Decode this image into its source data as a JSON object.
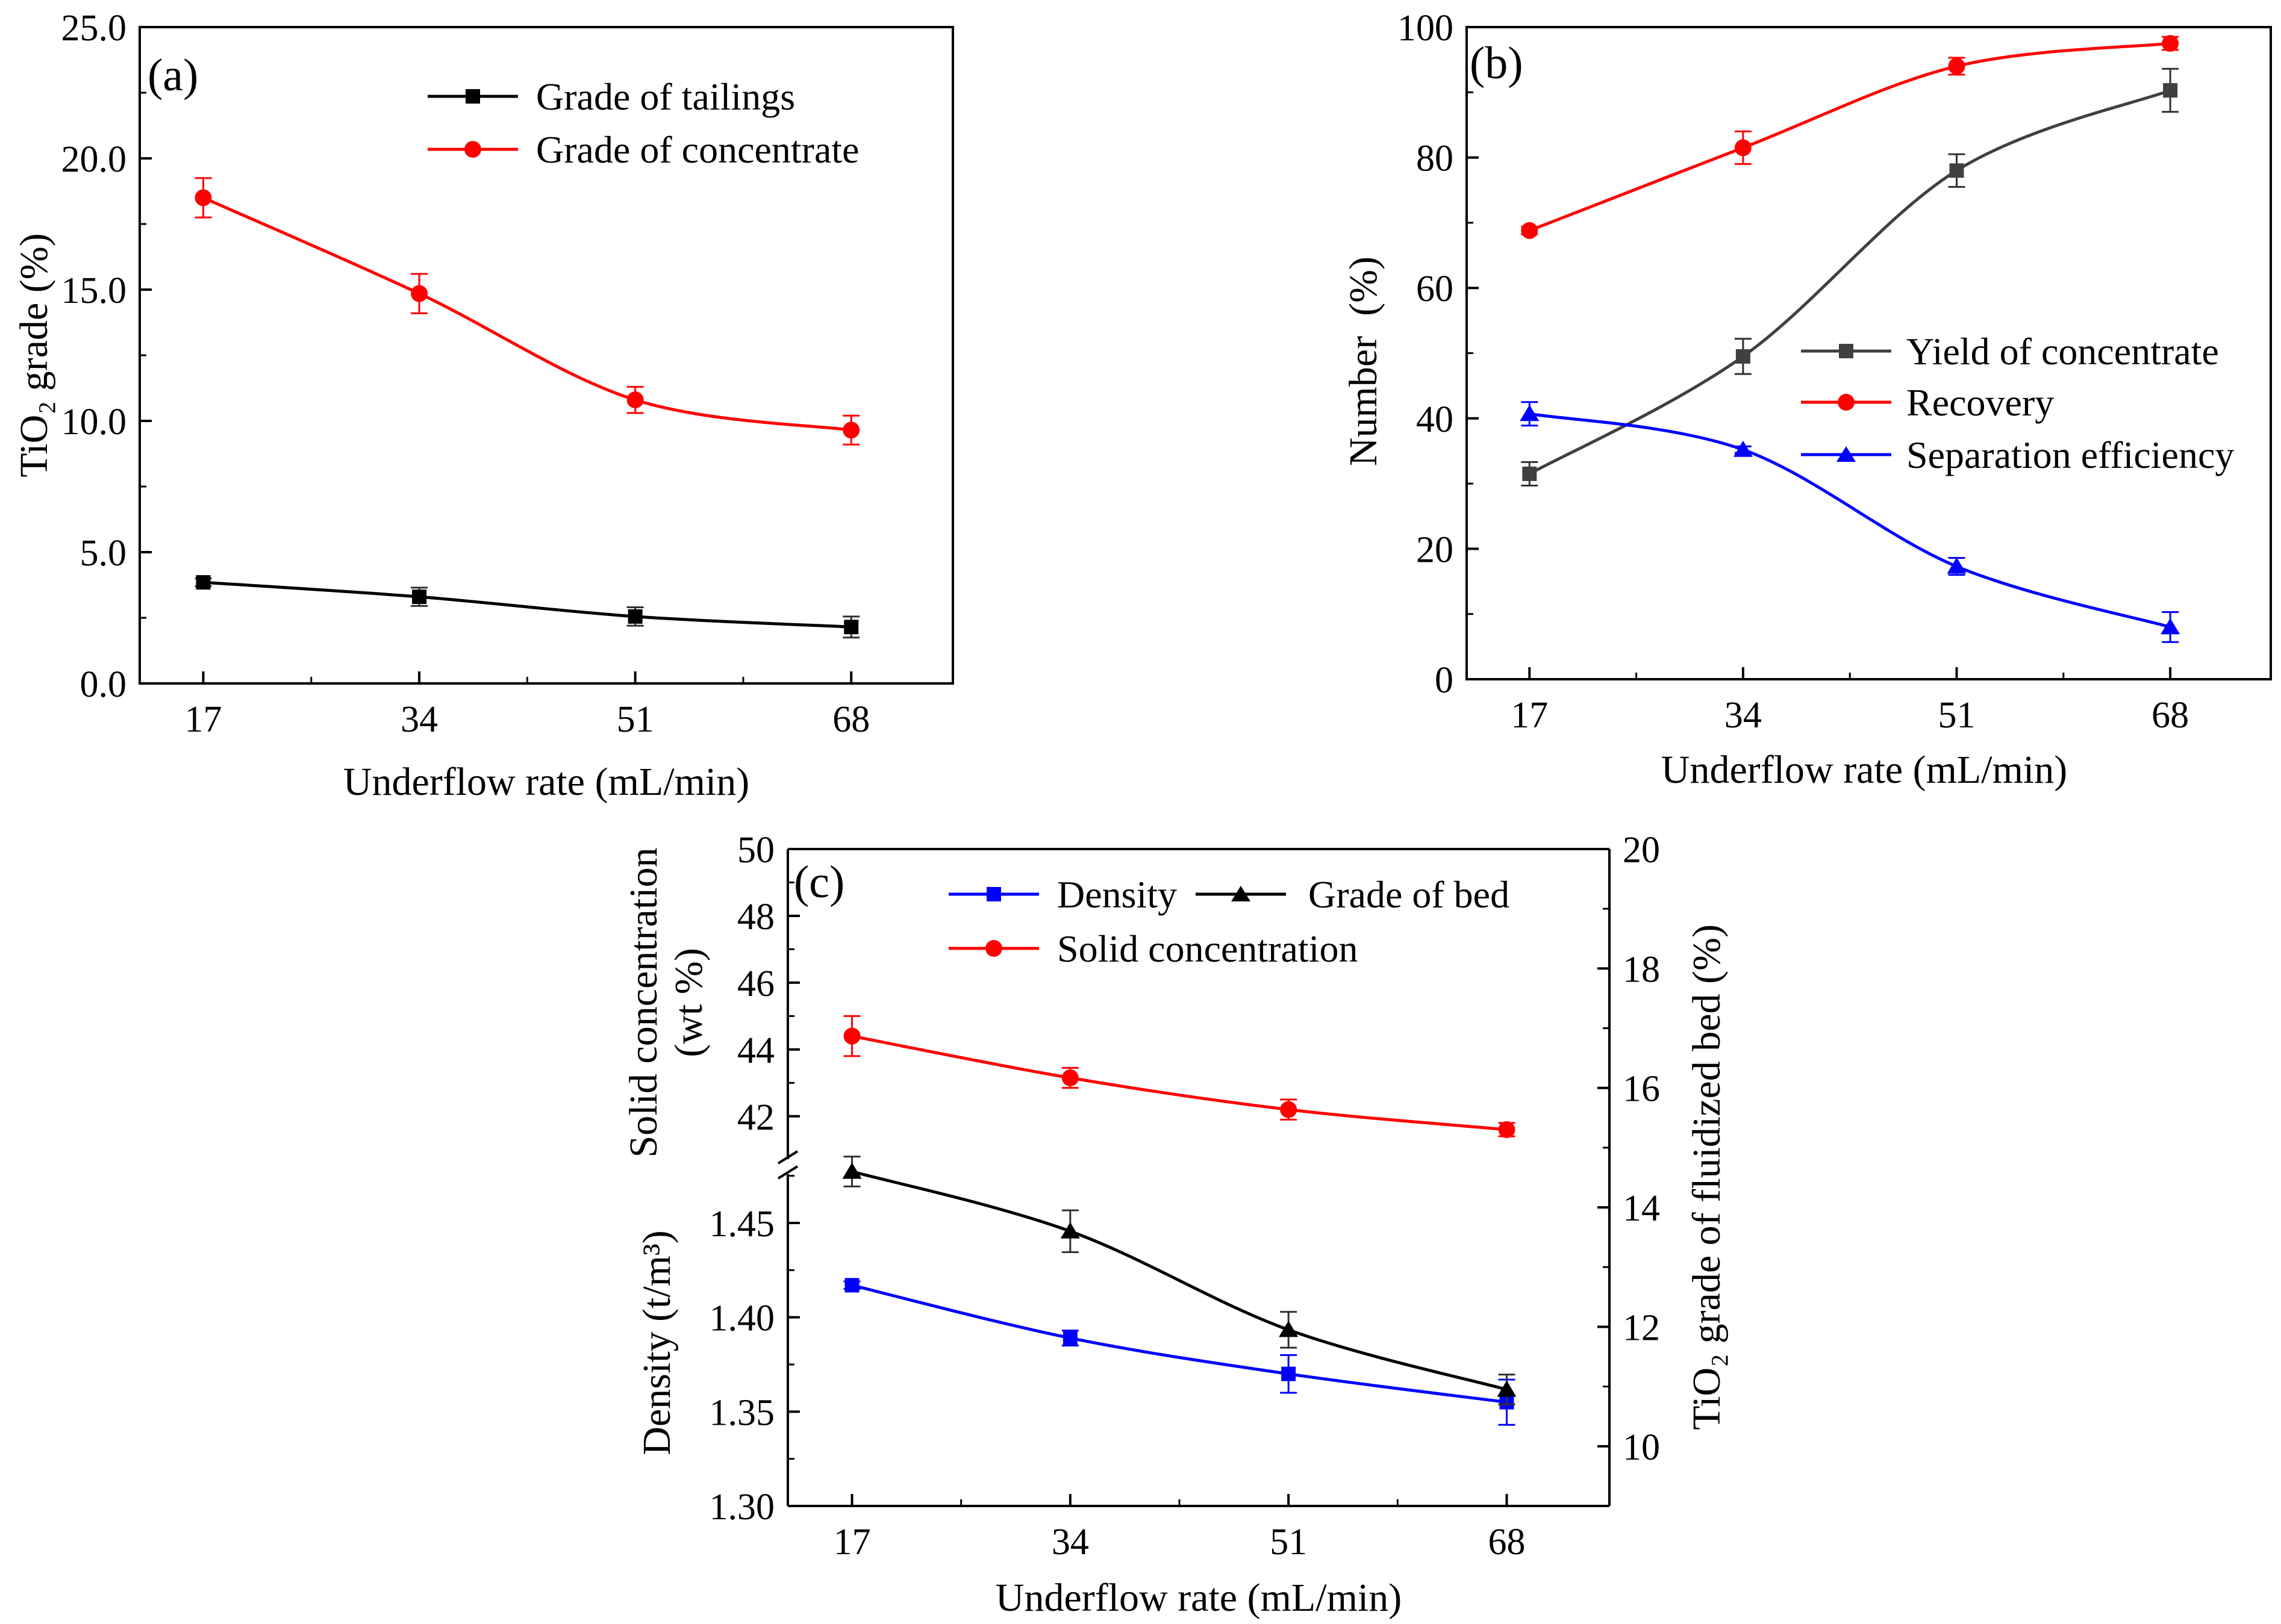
{
  "figure": {
    "panels": [
      {
        "id": "a",
        "label": "(a)",
        "xlabel": "Underflow rate (mL/min)",
        "ylabel": "TiO₂ grade (%)",
        "x_ticks": [
          "17",
          "34",
          "51",
          "68"
        ],
        "y_ticks": [
          "0.0",
          "5.0",
          "10.0",
          "15.0",
          "20.0",
          "25.0"
        ],
        "legend": [
          "Grade of tailings",
          "Grade of concentrate"
        ]
      },
      {
        "id": "b",
        "label": "(b)",
        "xlabel": "Underflow rate (mL/min)",
        "ylabel": "Number  (%)",
        "x_ticks": [
          "17",
          "34",
          "51",
          "68"
        ],
        "y_ticks": [
          "0",
          "20",
          "40",
          "60",
          "80",
          "100"
        ],
        "legend": [
          "Yield of concentrate",
          "Recovery",
          "Separation efficiency"
        ]
      },
      {
        "id": "c",
        "label": "(c)",
        "xlabel": "Underflow rate (mL/min)",
        "ylabel_left_top_line1": "Solid concentration",
        "ylabel_left_top_line2": "(wt %)",
        "ylabel_left_bottom": "Density (t/m³)",
        "ylabel_right": "TiO₂ grade of fluidized bed (%)",
        "x_ticks": [
          "17",
          "34",
          "51",
          "68"
        ],
        "y_ticks_left_top": [
          "42",
          "44",
          "46",
          "48",
          "50"
        ],
        "y_ticks_left_bottom": [
          "1.30",
          "1.35",
          "1.40",
          "1.45"
        ],
        "y_ticks_right": [
          "10",
          "12",
          "14",
          "16",
          "18",
          "20"
        ],
        "legend": [
          "Density",
          "Grade of bed",
          "Solid concentration"
        ]
      }
    ]
  },
  "chart_data": [
    {
      "type": "line",
      "title": "(a)",
      "xlabel": "Underflow rate (mL/min)",
      "ylabel": "TiO2 grade (%)",
      "categories": [
        17,
        34,
        51,
        68
      ],
      "xlim": [
        12,
        76
      ],
      "ylim": [
        0,
        25
      ],
      "series": [
        {
          "name": "Grade of tailings",
          "color": "#000000",
          "marker": "square",
          "values": [
            3.85,
            3.3,
            2.55,
            2.15
          ],
          "errors": [
            0.15,
            0.35,
            0.35,
            0.4
          ]
        },
        {
          "name": "Grade of concentrate",
          "color": "#ff0000",
          "marker": "circle",
          "values": [
            18.5,
            14.85,
            10.8,
            9.65
          ],
          "errors": [
            0.75,
            0.75,
            0.5,
            0.55
          ]
        }
      ]
    },
    {
      "type": "line",
      "title": "(b)",
      "xlabel": "Underflow rate (mL/min)",
      "ylabel": "Number (%)",
      "categories": [
        17,
        34,
        51,
        68
      ],
      "xlim": [
        12,
        76
      ],
      "ylim": [
        0,
        100
      ],
      "series": [
        {
          "name": "Yield of concentrate",
          "color": "#404040",
          "marker": "square",
          "values": [
            31.5,
            49.5,
            78.0,
            90.3
          ],
          "errors": [
            1.8,
            2.7,
            2.5,
            3.3
          ]
        },
        {
          "name": "Recovery",
          "color": "#ff0000",
          "marker": "circle",
          "values": [
            68.8,
            81.5,
            94.0,
            97.5
          ],
          "errors": [
            0.6,
            2.5,
            1.3,
            1.0
          ]
        },
        {
          "name": "Separation efficiency",
          "color": "#0000ff",
          "marker": "triangle",
          "values": [
            40.7,
            35.2,
            17.3,
            8.0
          ],
          "errors": [
            1.8,
            0.5,
            1.3,
            2.3
          ]
        }
      ]
    },
    {
      "type": "line",
      "title": "(c)",
      "xlabel": "Underflow rate (mL/min)",
      "categories": [
        17,
        34,
        51,
        68
      ],
      "xlim": [
        12,
        76
      ],
      "y_left_top": {
        "label": "Solid concentration (wt %)",
        "range": [
          40.5,
          50
        ]
      },
      "y_left_bottom": {
        "label": "Density (t/m3)",
        "range": [
          1.3,
          1.48
        ]
      },
      "y_right": {
        "label": "TiO2 grade of fluidized bed (%)",
        "range": [
          9,
          20
        ]
      },
      "series": [
        {
          "name": "Density",
          "axis": "left-bottom",
          "color": "#0000ff",
          "marker": "square",
          "values": [
            1.417,
            1.389,
            1.37,
            1.355
          ],
          "errors": [
            0.002,
            0.004,
            0.01,
            0.012
          ]
        },
        {
          "name": "Grade of bed",
          "axis": "right",
          "color": "#000000",
          "marker": "triangle",
          "values": [
            14.6,
            13.6,
            11.95,
            10.95
          ],
          "errors": [
            0.25,
            0.35,
            0.3,
            0.25
          ]
        },
        {
          "name": "Solid concentration",
          "axis": "left-top",
          "color": "#ff0000",
          "marker": "circle",
          "values": [
            44.4,
            43.15,
            42.2,
            41.6
          ],
          "errors": [
            0.6,
            0.3,
            0.3,
            0.2
          ]
        }
      ]
    }
  ]
}
